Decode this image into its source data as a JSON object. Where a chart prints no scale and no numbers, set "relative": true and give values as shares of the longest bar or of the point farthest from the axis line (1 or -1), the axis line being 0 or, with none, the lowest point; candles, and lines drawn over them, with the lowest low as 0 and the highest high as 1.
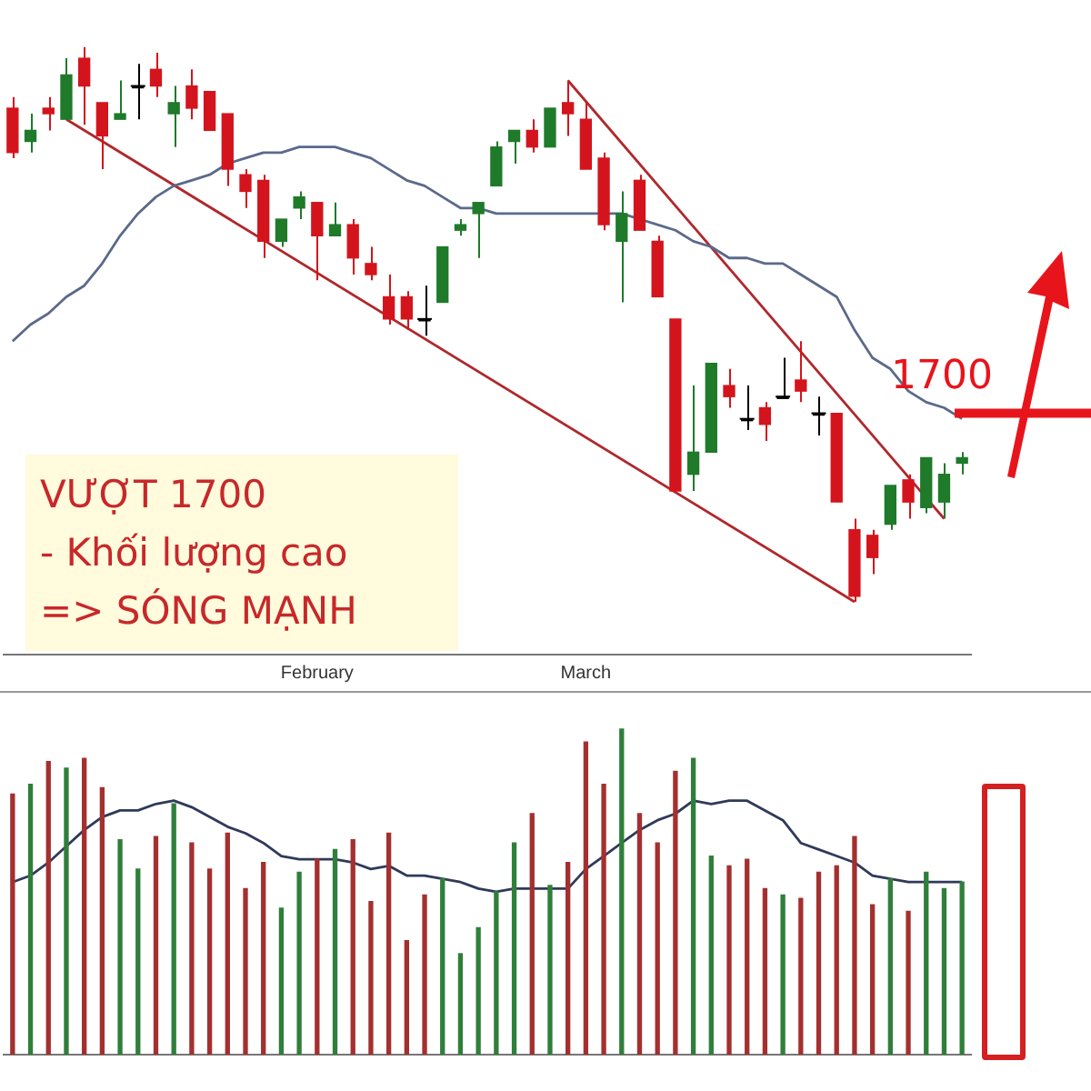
{
  "chart_data": [
    {
      "type": "candlestick",
      "relative": true,
      "tick_labels": "x",
      "categories": [
        null,
        null,
        null,
        null,
        null,
        null,
        null,
        null,
        null,
        null,
        null,
        null,
        null,
        null,
        null,
        null,
        null,
        "February",
        null,
        null,
        null,
        null,
        null,
        null,
        null,
        null,
        null,
        null,
        null,
        null,
        null,
        null,
        "March",
        null,
        null,
        null,
        null,
        null,
        null,
        null,
        null,
        null,
        null,
        null,
        null,
        null,
        null,
        null,
        null,
        null,
        null,
        null,
        null,
        null
      ],
      "ohlc": [
        [
          0.89,
          0.91,
          0.8,
          0.81
        ],
        [
          0.83,
          0.88,
          0.81,
          0.85
        ],
        [
          0.89,
          0.91,
          0.85,
          0.88
        ],
        [
          0.87,
          0.98,
          0.87,
          0.95
        ],
        [
          0.98,
          1.0,
          0.86,
          0.93
        ],
        [
          0.9,
          0.9,
          0.78,
          0.84
        ],
        [
          0.87,
          0.94,
          0.87,
          0.88
        ],
        [
          0.93,
          0.97,
          0.87,
          0.93
        ],
        [
          0.96,
          0.99,
          0.91,
          0.93
        ],
        [
          0.88,
          0.93,
          0.82,
          0.9
        ],
        [
          0.93,
          0.96,
          0.87,
          0.89
        ],
        [
          0.92,
          0.92,
          0.85,
          0.85
        ],
        [
          0.88,
          0.88,
          0.75,
          0.78
        ],
        [
          0.77,
          0.78,
          0.71,
          0.74
        ],
        [
          0.76,
          0.77,
          0.62,
          0.65
        ],
        [
          0.65,
          0.69,
          0.64,
          0.69
        ],
        [
          0.71,
          0.74,
          0.69,
          0.73
        ],
        [
          0.72,
          0.72,
          0.58,
          0.66
        ],
        [
          0.66,
          0.72,
          0.66,
          0.68
        ],
        [
          0.68,
          0.69,
          0.59,
          0.62
        ],
        [
          0.61,
          0.64,
          0.58,
          0.59
        ],
        [
          0.55,
          0.59,
          0.5,
          0.51
        ],
        [
          0.55,
          0.56,
          0.49,
          0.51
        ],
        [
          0.51,
          0.57,
          0.48,
          0.51
        ],
        [
          0.54,
          0.64,
          0.54,
          0.64
        ],
        [
          0.67,
          0.69,
          0.66,
          0.68
        ],
        [
          0.7,
          0.72,
          0.62,
          0.72
        ],
        [
          0.75,
          0.83,
          0.75,
          0.82
        ],
        [
          0.83,
          0.85,
          0.79,
          0.85
        ],
        [
          0.85,
          0.87,
          0.81,
          0.82
        ],
        [
          0.82,
          0.89,
          0.82,
          0.89
        ],
        [
          0.9,
          0.94,
          0.84,
          0.88
        ],
        [
          0.87,
          0.9,
          0.78,
          0.78
        ],
        [
          0.8,
          0.81,
          0.67,
          0.68
        ],
        [
          0.65,
          0.74,
          0.54,
          0.7
        ],
        [
          0.76,
          0.77,
          0.67,
          0.67
        ],
        [
          0.65,
          0.66,
          0.55,
          0.55
        ],
        [
          0.51,
          0.51,
          0.2,
          0.2
        ],
        [
          0.23,
          0.39,
          0.2,
          0.27
        ],
        [
          0.27,
          0.43,
          0.27,
          0.43
        ],
        [
          0.39,
          0.42,
          0.35,
          0.37
        ],
        [
          0.33,
          0.39,
          0.31,
          0.33
        ],
        [
          0.35,
          0.36,
          0.29,
          0.32
        ],
        [
          0.37,
          0.44,
          0.37,
          0.37
        ],
        [
          0.4,
          0.47,
          0.36,
          0.38
        ],
        [
          0.34,
          0.37,
          0.3,
          0.34
        ],
        [
          0.34,
          0.34,
          0.18,
          0.18
        ],
        [
          0.13,
          0.15,
          0,
          0.01
        ],
        [
          0.12,
          0.13,
          0.05,
          0.08
        ],
        [
          0.14,
          0.21,
          0.13,
          0.21
        ],
        [
          0.22,
          0.23,
          0.15,
          0.18
        ],
        [
          0.17,
          0.26,
          0.16,
          0.26
        ],
        [
          0.18,
          0.25,
          0.15,
          0.23
        ],
        [
          0.25,
          0.27,
          0.23,
          0.26
        ]
      ],
      "colors": [
        "#d4141c",
        "#1f7a2a",
        "#d4141c",
        "#1f7a2a",
        "#d4141c",
        "#d4141c",
        "#1f7a2a",
        "#000000",
        "#d4141c",
        "#1f7a2a",
        "#d4141c",
        "#d4141c",
        "#d4141c",
        "#d4141c",
        "#d4141c",
        "#1f7a2a",
        "#1f7a2a",
        "#d4141c",
        "#1f7a2a",
        "#d4141c",
        "#d4141c",
        "#d4141c",
        "#d4141c",
        "#000000",
        "#1f7a2a",
        "#1f7a2a",
        "#1f7a2a",
        "#1f7a2a",
        "#1f7a2a",
        "#d4141c",
        "#1f7a2a",
        "#d4141c",
        "#d4141c",
        "#d4141c",
        "#1f7a2a",
        "#d4141c",
        "#d4141c",
        "#d4141c",
        "#1f7a2a",
        "#1f7a2a",
        "#d4141c",
        "#000000",
        "#d4141c",
        "#000000",
        "#d4141c",
        "#000000",
        "#d4141c",
        "#d4141c",
        "#d4141c",
        "#1f7a2a",
        "#d4141c",
        "#1f7a2a",
        "#1f7a2a",
        "#1f7a2a"
      ],
      "series": [
        {
          "type": "line",
          "color": "#5b6a8a",
          "values": [
            0.47,
            0.5,
            0.52,
            0.55,
            0.57,
            0.61,
            0.66,
            0.7,
            0.73,
            0.75,
            0.76,
            0.77,
            0.79,
            0.8,
            0.81,
            0.81,
            0.82,
            0.82,
            0.82,
            0.81,
            0.8,
            0.78,
            0.76,
            0.75,
            0.73,
            0.71,
            0.71,
            0.7,
            0.7,
            0.7,
            0.7,
            0.7,
            0.7,
            0.7,
            0.7,
            0.69,
            0.68,
            0.67,
            0.65,
            0.64,
            0.62,
            0.62,
            0.61,
            0.61,
            0.59,
            0.57,
            0.55,
            0.49,
            0.44,
            0.42,
            0.38,
            0.36,
            0.35,
            0.33
          ]
        },
        {
          "type": "line",
          "color": "#b0282c",
          "values": [
            null,
            null,
            null,
            0.87,
            null,
            null,
            null,
            null,
            null,
            null,
            null,
            null,
            null,
            null,
            null,
            null,
            null,
            null,
            null,
            null,
            null,
            null,
            null,
            null,
            null,
            null,
            null,
            null,
            null,
            null,
            null,
            null,
            null,
            null,
            null,
            null,
            null,
            null,
            null,
            null,
            null,
            null,
            null,
            null,
            null,
            null,
            null,
            0,
            null,
            null,
            null,
            null,
            null,
            null
          ]
        },
        {
          "type": "line",
          "color": "#b0282c",
          "values": [
            null,
            null,
            null,
            null,
            null,
            null,
            null,
            null,
            null,
            null,
            null,
            null,
            null,
            null,
            null,
            null,
            null,
            null,
            null,
            null,
            null,
            null,
            null,
            null,
            null,
            null,
            null,
            null,
            null,
            null,
            null,
            0.94,
            null,
            null,
            null,
            null,
            null,
            null,
            null,
            null,
            null,
            null,
            null,
            null,
            null,
            null,
            null,
            null,
            null,
            null,
            null,
            null,
            0.15,
            null
          ]
        }
      ],
      "marker": "none",
      "annotations": [
        {
          "text": "1700",
          "y": 0.34
        },
        "VƯỢT 1700",
        "- Khối lượng cao",
        "=> SÓNG MẠNH"
      ]
    },
    {
      "type": "bar",
      "relative": true,
      "tick_labels": false,
      "categories": [
        null,
        null,
        null,
        null,
        null,
        null,
        null,
        null,
        null,
        null,
        null,
        null,
        null,
        null,
        null,
        null,
        null,
        null,
        null,
        null,
        null,
        null,
        null,
        null,
        null,
        null,
        null,
        null,
        null,
        null,
        null,
        null,
        null,
        null,
        null,
        null,
        null,
        null,
        null,
        null,
        null,
        null,
        null,
        null,
        null,
        null,
        null,
        null,
        null,
        null,
        null,
        null,
        null,
        null
      ],
      "values": [
        0.8,
        0.83,
        0.9,
        0.88,
        0.91,
        0.82,
        0.66,
        0.57,
        0.67,
        0.77,
        0.65,
        0.57,
        0.68,
        0.51,
        0.59,
        0.45,
        0.56,
        0.6,
        0.63,
        0.66,
        0.47,
        0.68,
        0.35,
        0.49,
        0.54,
        0.31,
        0.39,
        0.5,
        0.65,
        0.74,
        0.52,
        0.59,
        0.96,
        0.83,
        1,
        0.74,
        0.65,
        0.87,
        0.91,
        0.61,
        0.58,
        0.6,
        0.51,
        0.49,
        0.48,
        0.56,
        0.58,
        0.67,
        0.46,
        0.54,
        0.44,
        0.56,
        0.51,
        0.53
      ],
      "colors": [
        "#a3302f",
        "#2f7f3a",
        "#a3302f",
        "#2f7f3a",
        "#a3302f",
        "#a3302f",
        "#2f7f3a",
        "#2f7f3a",
        "#a3302f",
        "#2f7f3a",
        "#a3302f",
        "#a3302f",
        "#a3302f",
        "#a3302f",
        "#a3302f",
        "#2f7f3a",
        "#2f7f3a",
        "#a3302f",
        "#2f7f3a",
        "#a3302f",
        "#a3302f",
        "#a3302f",
        "#a3302f",
        "#a3302f",
        "#2f7f3a",
        "#2f7f3a",
        "#2f7f3a",
        "#2f7f3a",
        "#2f7f3a",
        "#a3302f",
        "#2f7f3a",
        "#a3302f",
        "#a3302f",
        "#a3302f",
        "#2f7f3a",
        "#a3302f",
        "#a3302f",
        "#a3302f",
        "#2f7f3a",
        "#2f7f3a",
        "#a3302f",
        "#a3302f",
        "#a3302f",
        "#2f7f3a",
        "#a3302f",
        "#a3302f",
        "#a3302f",
        "#a3302f",
        "#a3302f",
        "#2f7f3a",
        "#a3302f",
        "#2f7f3a",
        "#2f7f3a",
        "#2f7f3a"
      ],
      "series": [
        {
          "type": "line",
          "color": "#2f3a5a",
          "values": [
            0.53,
            0.55,
            0.59,
            0.64,
            0.69,
            0.73,
            0.75,
            0.75,
            0.77,
            0.78,
            0.76,
            0.73,
            0.7,
            0.68,
            0.65,
            0.61,
            0.6,
            0.6,
            0.6,
            0.59,
            0.57,
            0.58,
            0.55,
            0.55,
            0.54,
            0.53,
            0.51,
            0.5,
            0.51,
            0.51,
            0.51,
            0.51,
            0.57,
            0.61,
            0.65,
            0.69,
            0.72,
            0.74,
            0.78,
            0.77,
            0.78,
            0.78,
            0.75,
            0.72,
            0.65,
            0.63,
            0.61,
            0.59,
            0.55,
            0.54,
            0.53,
            0.53,
            0.53,
            0.53
          ]
        }
      ],
      "marker": "none"
    }
  ]
}
